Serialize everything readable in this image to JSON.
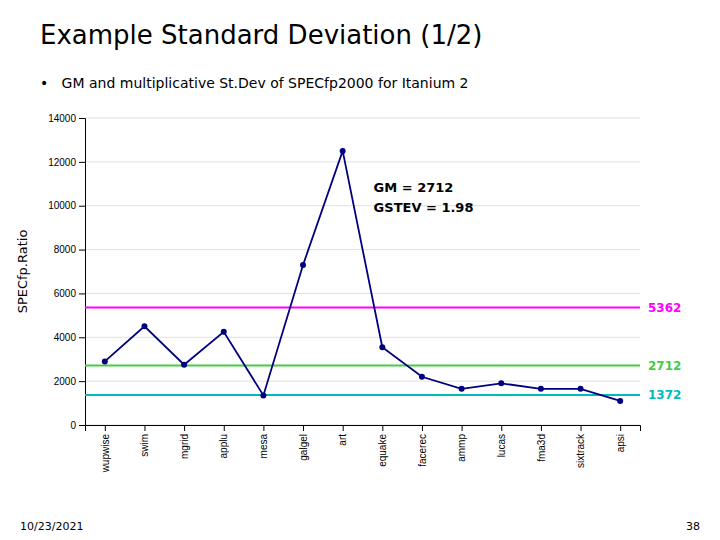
{
  "chart_data": {
    "type": "line",
    "title": "Example Standard Deviation (1/2)",
    "subtitle": "•   GM and multiplicative St.Dev of SPECfp2000 for Itanium 2",
    "categories": [
      "wupwise",
      "swim",
      "mgrid",
      "applu",
      "mesa",
      "galgel",
      "art",
      "equake",
      "facerec",
      "ammp",
      "lucas",
      "fma3d",
      "sixtrack",
      "apsi"
    ],
    "values": [
      2900,
      4500,
      2750,
      4250,
      1350,
      7300,
      12500,
      3550,
      2200,
      1650,
      1900,
      1650,
      1650,
      1100
    ],
    "color": "#000080",
    "marker": "circle",
    "reference_lines": [
      {
        "value": 5362,
        "color": "#ff00ff"
      },
      {
        "value": 2712,
        "color": "#44cc44"
      },
      {
        "value": 1372,
        "color": "#00bbbb"
      }
    ],
    "ylabel": "SPECfp.Ratio",
    "ylim": [
      0,
      14000
    ],
    "yticks": [
      0,
      2000,
      4000,
      6000,
      8000,
      10000,
      12000,
      14000
    ],
    "grid": true,
    "annotations": [
      "GM = 2712\nGSTEV = 1.98"
    ],
    "footer_left": "10/23/2021",
    "footer_right": "38"
  }
}
